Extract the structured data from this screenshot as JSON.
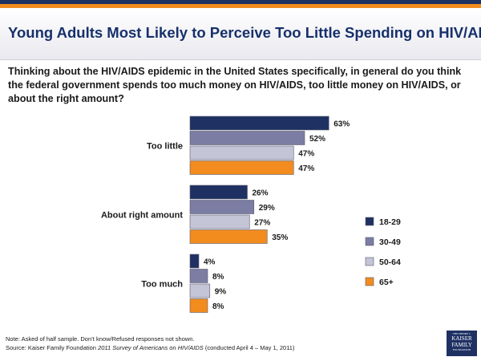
{
  "header": {
    "title": "Young Adults Most Likely to Perceive Too Little Spending on HIV/AIDS"
  },
  "question": "Thinking about the HIV/AIDS epidemic in the United States specifically, in general do you think the federal government spends too much money on HIV/AIDS, too little money on HIV/AIDS, or about the right amount?",
  "chart_data": {
    "type": "bar",
    "orientation": "horizontal",
    "title": "Young Adults Most Likely to Perceive Too Little Spending on HIV/AIDS",
    "categories": [
      "Too little",
      "About right amount",
      "Too much"
    ],
    "series": [
      {
        "name": "18-29",
        "values": [
          63,
          26,
          4
        ],
        "color": "#1f3163"
      },
      {
        "name": "30-49",
        "values": [
          52,
          29,
          8
        ],
        "color": "#7b7da3"
      },
      {
        "name": "50-64",
        "values": [
          47,
          27,
          9
        ],
        "color": "#c3c4d6"
      },
      {
        "name": "65+",
        "values": [
          47,
          35,
          8
        ],
        "color": "#f28c1e"
      }
    ],
    "value_suffix": "%",
    "xlim": [
      0,
      100
    ],
    "legend_position": "right",
    "grid": false
  },
  "footer": {
    "note": "Note: Asked of half sample. Don’t know/Refused responses not shown.",
    "source_prefix": "Source: Kaiser Family Foundation ",
    "source_title": "2011 Survey of Americans on HIV/AIDS",
    "source_suffix": " (conducted April 4 – May 1, 2011)"
  },
  "logo": {
    "line1": "THE HENRY J.",
    "line2": "KAISER",
    "line3": "FAMILY",
    "line4": "FOUNDATION"
  }
}
